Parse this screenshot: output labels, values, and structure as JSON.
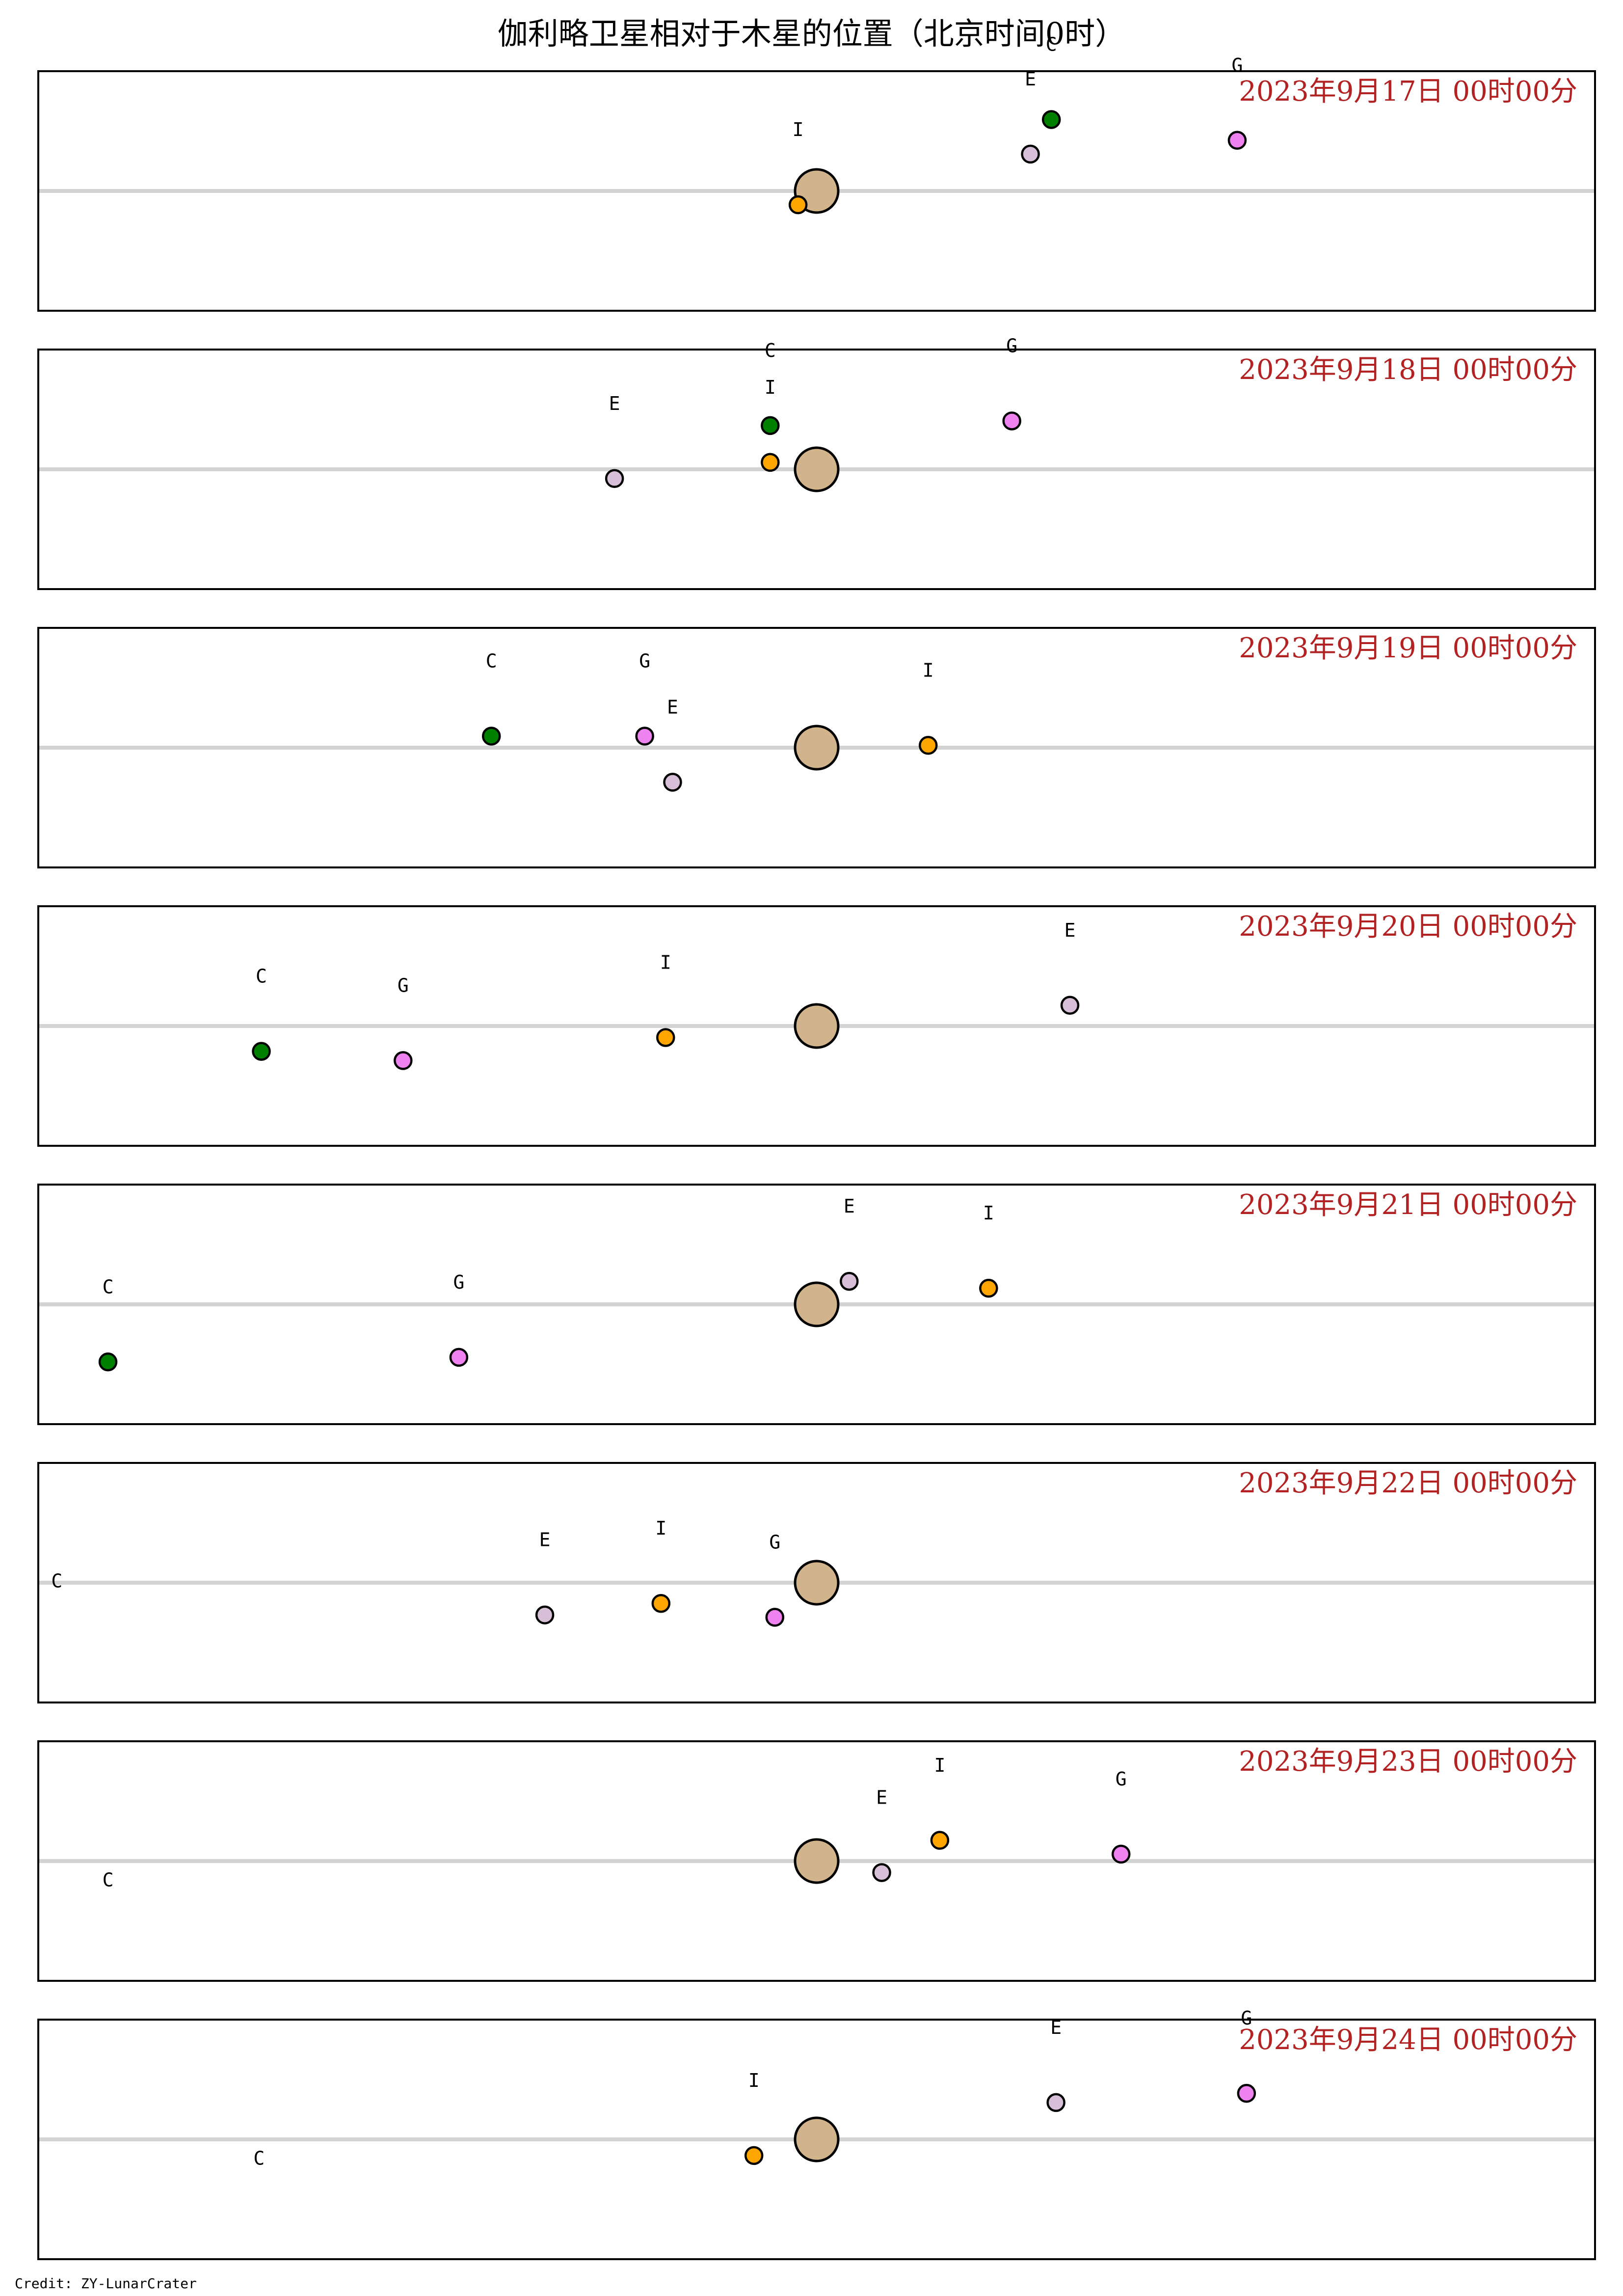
{
  "title": "伽利略卫星相对于木星的位置（北京时间0时）",
  "credit": "Credit: ZY-LunarCrater",
  "colors": {
    "jupiter": "#d2b48c",
    "horizon_line": "#d3d3d3",
    "date_label": "#b22222",
    "Io": "#ffa500",
    "Europa": "#d8bfd8",
    "Ganymede": "#ee82ee",
    "Callisto": "#008000"
  },
  "chart_data": {
    "type": "scatter",
    "x_unit": "Jupiter radii (east-west offset)",
    "xlim": [
      -33.5,
      33.5
    ],
    "ylim": [
      -5.2,
      5.2
    ],
    "grid": false,
    "panels": [
      {
        "date_label": "2023年9月17日  00时00分",
        "moons": [
          {
            "label": "I",
            "color_key": "Io",
            "x": -0.8,
            "y": -0.6,
            "show_point": true
          },
          {
            "label": "E",
            "color_key": "Europa",
            "x": 9.2,
            "y": 1.6,
            "show_point": true
          },
          {
            "label": "C",
            "color_key": "Callisto",
            "x": 10.1,
            "y": 3.1,
            "show_point": true
          },
          {
            "label": "G",
            "color_key": "Ganymede",
            "x": 18.1,
            "y": 2.2,
            "show_point": true
          }
        ]
      },
      {
        "date_label": "2023年9月18日  00时00分",
        "moons": [
          {
            "label": "E",
            "color_key": "Europa",
            "x": -8.7,
            "y": -0.4,
            "show_point": true
          },
          {
            "label": "C",
            "color_key": "Callisto",
            "x": -2.0,
            "y": 1.9,
            "show_point": true
          },
          {
            "label": "I",
            "color_key": "Io",
            "x": -2.0,
            "y": 0.3,
            "show_point": true
          },
          {
            "label": "G",
            "color_key": "Ganymede",
            "x": 8.4,
            "y": 2.1,
            "show_point": true
          }
        ]
      },
      {
        "date_label": "2023年9月19日  00时00分",
        "moons": [
          {
            "label": "C",
            "color_key": "Callisto",
            "x": -14.0,
            "y": 0.5,
            "show_point": true
          },
          {
            "label": "G",
            "color_key": "Ganymede",
            "x": -7.4,
            "y": 0.5,
            "show_point": true
          },
          {
            "label": "E",
            "color_key": "Europa",
            "x": -6.2,
            "y": -1.5,
            "show_point": true
          },
          {
            "label": "I",
            "color_key": "Io",
            "x": 4.8,
            "y": 0.1,
            "show_point": true
          }
        ]
      },
      {
        "date_label": "2023年9月20日  00时00分",
        "moons": [
          {
            "label": "C",
            "color_key": "Callisto",
            "x": -23.9,
            "y": -1.1,
            "show_point": true
          },
          {
            "label": "G",
            "color_key": "Ganymede",
            "x": -17.8,
            "y": -1.5,
            "show_point": true
          },
          {
            "label": "I",
            "color_key": "Io",
            "x": -6.5,
            "y": -0.5,
            "show_point": true
          },
          {
            "label": "E",
            "color_key": "Europa",
            "x": 10.9,
            "y": 0.9,
            "show_point": true
          }
        ]
      },
      {
        "date_label": "2023年9月21日  00时00分",
        "moons": [
          {
            "label": "C",
            "color_key": "Callisto",
            "x": -30.5,
            "y": -2.5,
            "show_point": true
          },
          {
            "label": "G",
            "color_key": "Ganymede",
            "x": -15.4,
            "y": -2.3,
            "show_point": true
          },
          {
            "label": "E",
            "color_key": "Europa",
            "x": 1.4,
            "y": 1.0,
            "show_point": true
          },
          {
            "label": "I",
            "color_key": "Io",
            "x": 7.4,
            "y": 0.7,
            "show_point": true
          }
        ]
      },
      {
        "date_label": "2023年9月22日  00时00分",
        "moons": [
          {
            "label": "C",
            "color_key": "Callisto",
            "x": -32.7,
            "y": 0.1,
            "show_point": false
          },
          {
            "label": "E",
            "color_key": "Europa",
            "x": -11.7,
            "y": -1.4,
            "show_point": true
          },
          {
            "label": "I",
            "color_key": "Io",
            "x": -6.7,
            "y": -0.9,
            "show_point": true
          },
          {
            "label": "G",
            "color_key": "Ganymede",
            "x": -1.8,
            "y": -1.5,
            "show_point": true
          }
        ]
      },
      {
        "date_label": "2023年9月23日  00时00分",
        "moons": [
          {
            "label": "C",
            "color_key": "Callisto",
            "x": -30.5,
            "y": -0.8,
            "show_point": false
          },
          {
            "label": "E",
            "color_key": "Europa",
            "x": 2.8,
            "y": -0.5,
            "show_point": true
          },
          {
            "label": "I",
            "color_key": "Io",
            "x": 5.3,
            "y": 0.9,
            "show_point": true
          },
          {
            "label": "G",
            "color_key": "Ganymede",
            "x": 13.1,
            "y": 0.3,
            "show_point": true
          }
        ]
      },
      {
        "date_label": "2023年9月24日  00时00分",
        "moons": [
          {
            "label": "C",
            "color_key": "Callisto",
            "x": -24.0,
            "y": -0.8,
            "show_point": false
          },
          {
            "label": "I",
            "color_key": "Io",
            "x": -2.7,
            "y": -0.7,
            "show_point": true
          },
          {
            "label": "E",
            "color_key": "Europa",
            "x": 10.3,
            "y": 1.6,
            "show_point": true
          },
          {
            "label": "G",
            "color_key": "Ganymede",
            "x": 18.5,
            "y": 2.0,
            "show_point": true
          }
        ]
      }
    ]
  }
}
